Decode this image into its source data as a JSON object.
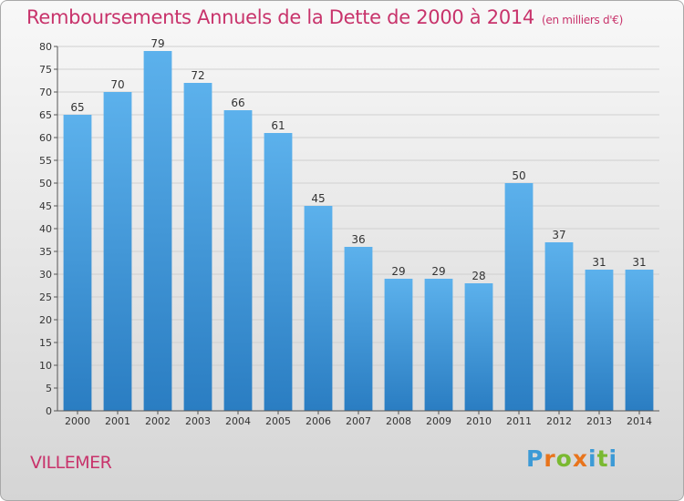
{
  "title": "Remboursements Annuels de la Dette de 2000 à 2014",
  "unit": "(en milliers d'€)",
  "commune": "VILLEMER",
  "logo": {
    "letters": [
      "P",
      "r",
      "o",
      "x",
      "i",
      "t",
      "i"
    ],
    "colors": [
      "#3c9ad6",
      "#e8741c",
      "#7ab931",
      "#e8741c",
      "#3c9ad6",
      "#7ab931",
      "#3c9ad6"
    ]
  },
  "colors": {
    "bar": "#4aa0df",
    "bar_light": "#5cb1ec",
    "bar_dark": "#2a7dc2",
    "title": "#c8336b"
  },
  "chart_data": {
    "type": "bar",
    "categories": [
      "2000",
      "2001",
      "2002",
      "2003",
      "2004",
      "2005",
      "2006",
      "2007",
      "2008",
      "2009",
      "2010",
      "2011",
      "2012",
      "2013",
      "2014"
    ],
    "values": [
      65,
      70,
      79,
      72,
      66,
      61,
      45,
      36,
      29,
      29,
      28,
      50,
      37,
      31,
      31
    ],
    "ylim": [
      0,
      80
    ],
    "yticks": [
      0,
      5,
      10,
      15,
      20,
      25,
      30,
      35,
      40,
      45,
      50,
      55,
      60,
      65,
      70,
      75,
      80
    ],
    "grid": true
  }
}
